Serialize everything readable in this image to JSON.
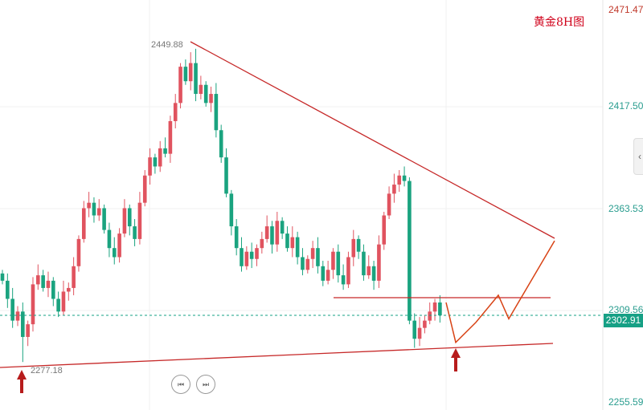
{
  "title": "黄金8H图",
  "current_price": "2302.91",
  "nav": {
    "prev_icon": "skip-back-icon",
    "next_icon": "skip-forward-icon",
    "prev_glyph": "⏮",
    "next_glyph": "⏭",
    "side_glyph": "‹"
  },
  "colors": {
    "up": "#e0535f",
    "down": "#1aa37f",
    "lines": "#c62828",
    "arrow": "#b71c1c",
    "tag": "#16a085"
  },
  "chart_data": {
    "type": "candlestick",
    "title": "黄金8H图",
    "ylim": [
      2255.59,
      2471.47
    ],
    "y_ticks": [
      "2471.47",
      "2417.50",
      "2363.53",
      "2309.56",
      "2255.59"
    ],
    "annotations": {
      "high": "2449.88",
      "low": "2277.18"
    },
    "high_index": 38,
    "low_index": 4,
    "closes": [
      2322,
      2312,
      2300,
      2305,
      2291,
      2298,
      2320,
      2325,
      2318,
      2322,
      2312,
      2305,
      2316,
      2318,
      2330,
      2345,
      2362,
      2365,
      2358,
      2362,
      2350,
      2340,
      2335,
      2348,
      2362,
      2352,
      2345,
      2365,
      2380,
      2390,
      2385,
      2395,
      2392,
      2410,
      2420,
      2440,
      2432,
      2442,
      2425,
      2430,
      2420,
      2425,
      2405,
      2390,
      2370,
      2352,
      2340,
      2330,
      2338,
      2334,
      2340,
      2345,
      2352,
      2342,
      2355,
      2348,
      2340,
      2346,
      2335,
      2328,
      2334,
      2340,
      2330,
      2322,
      2328,
      2338,
      2325,
      2320,
      2335,
      2345,
      2338,
      2325,
      2330,
      2322,
      2342,
      2358,
      2370,
      2375,
      2380,
      2377,
      2300,
      2290,
      2296,
      2300,
      2305,
      2310,
      2302.91
    ],
    "trendlines": [
      {
        "name": "descending-resistance",
        "from": [
          36,
          2449.88
        ],
        "to": [
          108,
          2344
        ]
      },
      {
        "name": "ascending-support",
        "from": [
          0,
          2275
        ],
        "to": [
          108,
          2288
        ]
      },
      {
        "name": "horizontal-resistance",
        "from": [
          65,
          2314
        ],
        "to": [
          108,
          2314
        ]
      }
    ],
    "projection": [
      2310,
      2288,
      2299,
      2314,
      2301,
      2344
    ]
  }
}
